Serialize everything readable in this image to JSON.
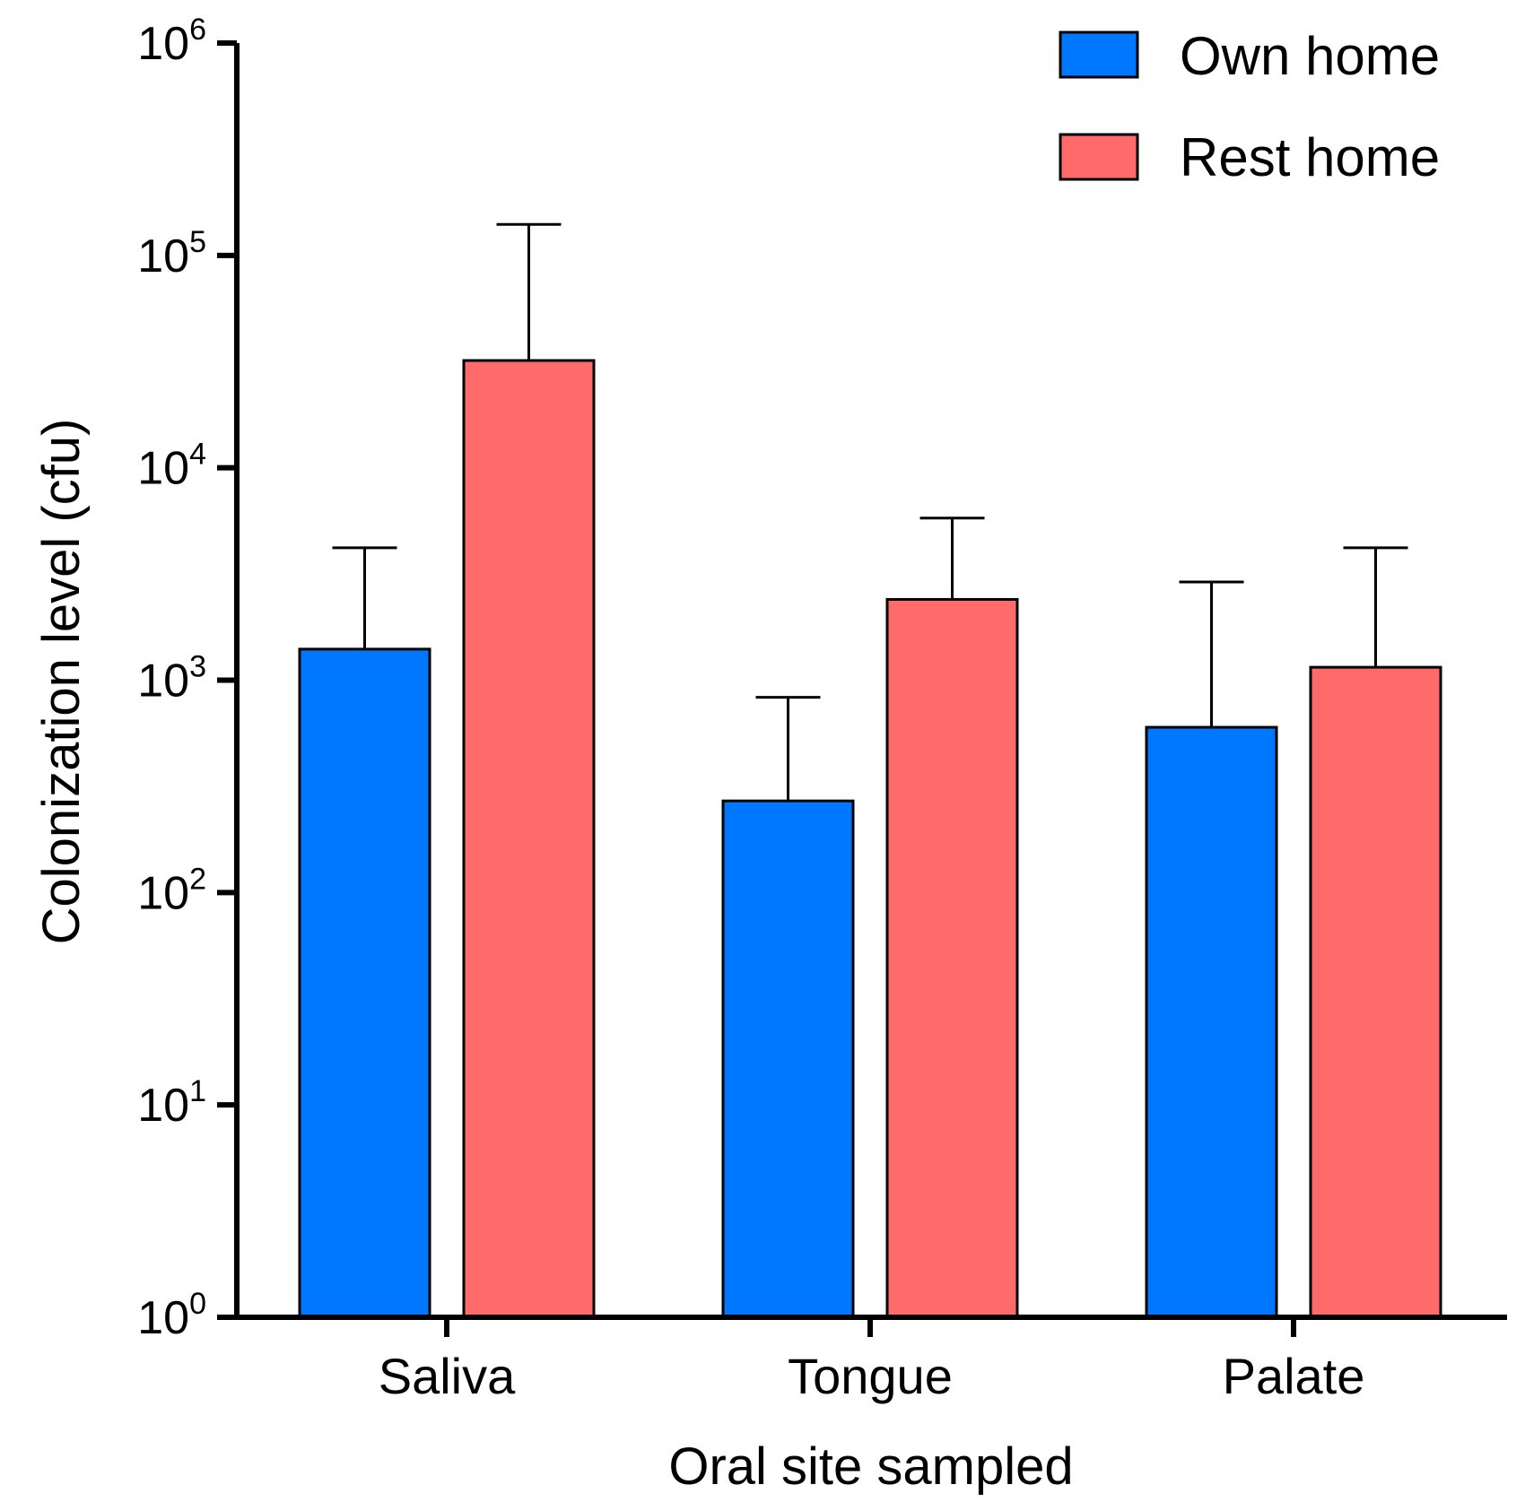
{
  "chart_data": {
    "type": "bar",
    "yscale": "log",
    "title": "",
    "xlabel": "Oral site sampled",
    "ylabel": "Colonization level (cfu)",
    "ylim": [
      1,
      1000000
    ],
    "y_ticks": [
      {
        "base": "10",
        "exp": "0",
        "value": 1
      },
      {
        "base": "10",
        "exp": "1",
        "value": 10
      },
      {
        "base": "10",
        "exp": "2",
        "value": 100
      },
      {
        "base": "10",
        "exp": "3",
        "value": 1000
      },
      {
        "base": "10",
        "exp": "4",
        "value": 10000
      },
      {
        "base": "10",
        "exp": "5",
        "value": 100000
      },
      {
        "base": "10",
        "exp": "6",
        "value": 1000000
      }
    ],
    "categories": [
      "Saliva",
      "Tongue",
      "Palate"
    ],
    "series": [
      {
        "name": "Own home",
        "color": "#0077ff",
        "values": [
          1400,
          270,
          600
        ],
        "error_upper": [
          4200,
          830,
          2900
        ]
      },
      {
        "name": "Rest home",
        "color": "#ff6b6b",
        "values": [
          32000,
          2400,
          1150
        ],
        "error_upper": [
          140000,
          5800,
          4200
        ]
      }
    ],
    "legend_position": "top-right",
    "grid": false
  }
}
